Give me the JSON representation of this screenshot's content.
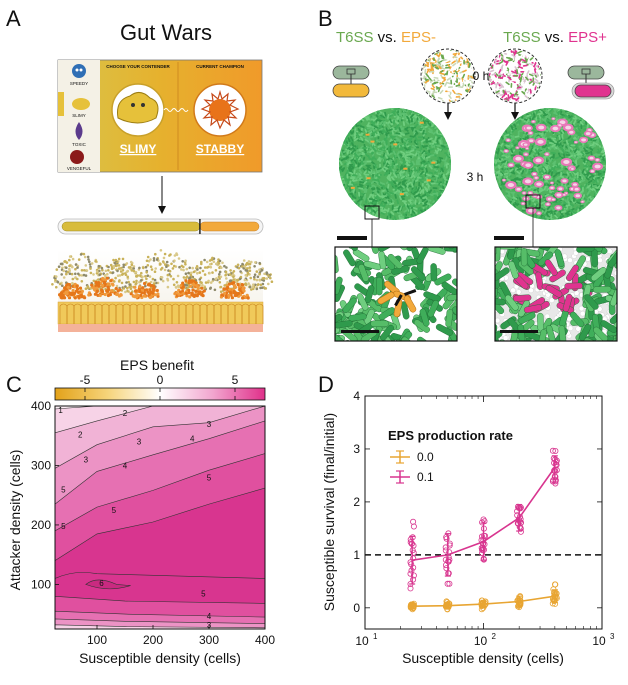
{
  "panel_labels": [
    "A",
    "B",
    "C",
    "D"
  ],
  "panelA": {
    "title": "Gut Wars",
    "characters": [
      "SPEEDY",
      "SLIMY",
      "TOXIC",
      "VENGEFUL"
    ],
    "choose_header": "CHOOSE YOUR CONTENDER",
    "champion_header": "CURRENT CHAMPION",
    "contender": "SLIMY",
    "champion": "STABBY",
    "progress_fraction": 0.7,
    "colors": {
      "slimy": "#e6c13a",
      "stabby": "#f29c2b",
      "gut_orange": "#e5761a"
    }
  },
  "panelB": {
    "left_title": {
      "a": "T6SS",
      "vs": " vs. ",
      "b": "EPS-"
    },
    "right_title": {
      "a": "T6SS",
      "vs": " vs. ",
      "b": "EPS+"
    },
    "time_0": "0 h",
    "time_3": "3 h",
    "colors": {
      "t6ss": "#6aa84f",
      "eps_minus": "#f2a93b",
      "eps_plus": "#e0338f",
      "attacker": "#3fae5a"
    }
  },
  "panelC": {
    "colorbar_title": "EPS benefit",
    "colorbar_ticks": [
      "-5",
      "0",
      "5"
    ],
    "colorbar_values": [
      -5,
      0,
      5
    ],
    "ylabel": "Attacker density (cells)",
    "xlabel": "Susceptible density (cells)",
    "yticks": [
      "100",
      "200",
      "300",
      "400"
    ],
    "xticks": [
      "100",
      "200",
      "300",
      "400"
    ],
    "contour_labels": [
      "1",
      "2",
      "2",
      "3",
      "3",
      "3",
      "4",
      "4",
      "5",
      "5",
      "5",
      "5",
      "6",
      "5",
      "4",
      "3"
    ]
  },
  "panelD": {
    "ylabel": "Susceptible survival (final/initial)",
    "xlabel": "Susceptible density (cells)",
    "legend_title": "EPS production rate",
    "yticks": [
      "0",
      "1",
      "2",
      "3",
      "4"
    ],
    "xticks": [
      {
        "b": "10",
        "e": "1"
      },
      {
        "b": "10",
        "e": "2"
      },
      {
        "b": "10",
        "e": "3"
      }
    ]
  },
  "chart_data": [
    {
      "type": "heatmap",
      "title": "",
      "colorbar_label": "EPS benefit",
      "colorbar_range": [
        -7,
        7
      ],
      "xlabel": "Susceptible density (cells)",
      "ylabel": "Attacker density (cells)",
      "xlim": [
        25,
        400
      ],
      "ylim": [
        25,
        400
      ],
      "contour_levels": [
        1,
        2,
        3,
        4,
        5,
        6
      ]
    },
    {
      "type": "scatter",
      "xscale": "log",
      "xlabel": "Susceptible density (cells)",
      "ylabel": "Susceptible survival (final/initial)",
      "xlim": [
        10,
        1000
      ],
      "ylim": [
        -0.4,
        4
      ],
      "reference_line_y": 1,
      "x": [
        25,
        50,
        100,
        200,
        400
      ],
      "series": [
        {
          "name": "0.0",
          "color": "#e8a532",
          "mean": [
            0.03,
            0.04,
            0.07,
            0.12,
            0.22
          ],
          "sd": [
            0.04,
            0.05,
            0.07,
            0.1,
            0.12
          ]
        },
        {
          "name": "0.1",
          "color": "#d8358f",
          "mean": [
            0.9,
            1.0,
            1.25,
            1.7,
            2.65
          ],
          "sd": [
            0.45,
            0.4,
            0.35,
            0.25,
            0.22
          ]
        }
      ]
    }
  ]
}
